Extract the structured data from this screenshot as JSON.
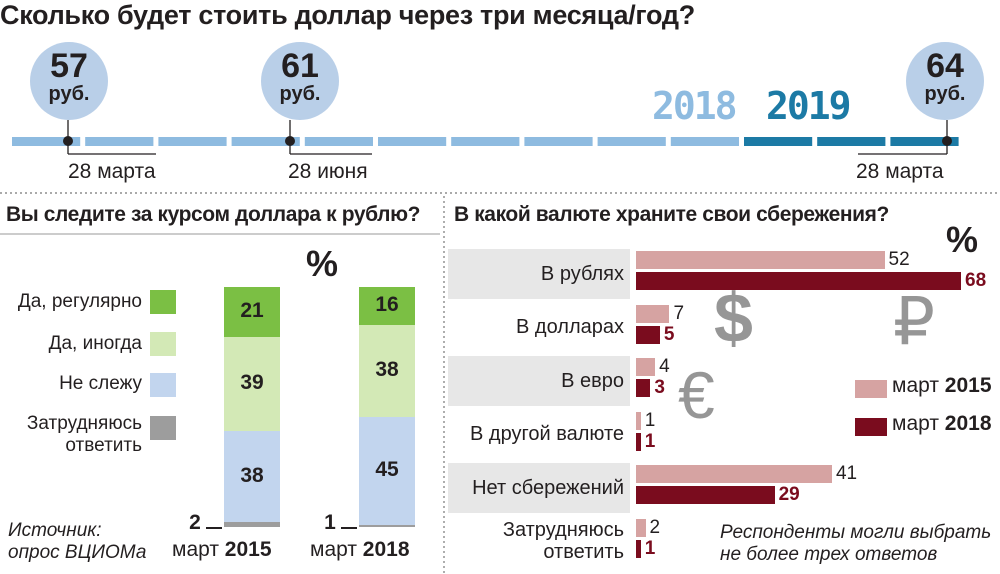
{
  "title": "Сколько будет стоить доллар через три месяца/год?",
  "timeline": {
    "points": [
      {
        "value": "57",
        "unit": "руб.",
        "date": "28 марта"
      },
      {
        "value": "61",
        "unit": "руб.",
        "date": "28 июня"
      },
      {
        "value": "64",
        "unit": "руб.",
        "date": "28 марта"
      }
    ],
    "years": [
      "2018",
      "2019"
    ],
    "colors": {
      "light": "#8ebbe0",
      "dark": "#1c7aa5"
    }
  },
  "chart_data": [
    {
      "type": "bar",
      "title": "Вы следите за курсом доллара к рублю?",
      "unit": "%",
      "categories": [
        "март 2015",
        "март 2018"
      ],
      "category_parts": [
        [
          "март",
          "2015"
        ],
        [
          "март",
          "2018"
        ]
      ],
      "series": [
        {
          "name": "Да, регулярно",
          "values": [
            21,
            16
          ],
          "color": "#7bbf44"
        },
        {
          "name": "Да, иногда",
          "values": [
            39,
            38
          ],
          "color": "#d3e9b6"
        },
        {
          "name": "Не слежу",
          "values": [
            38,
            45
          ],
          "color": "#c2d5ee"
        },
        {
          "name": "Затрудняюсь ответить",
          "values": [
            2,
            1
          ],
          "color": "#9d9d9d"
        }
      ],
      "legend_lines": [
        [
          "Да, регулярно"
        ],
        [
          "Да, иногда"
        ],
        [
          "Не слежу"
        ],
        [
          "Затрудняюсь",
          "ответить"
        ]
      ]
    },
    {
      "type": "bar",
      "orientation": "horizontal",
      "title": "В какой валюте храните свои сбережения?",
      "unit": "%",
      "categories": [
        "В рублях",
        "В долларах",
        "В евро",
        "В другой валюте",
        "Нет сбережений",
        "Затрудняюсь ответить"
      ],
      "category_lines": [
        [
          "В рублях"
        ],
        [
          "В долларах"
        ],
        [
          "В евро"
        ],
        [
          "В другой валюте"
        ],
        [
          "Нет сбережений"
        ],
        [
          "Затрудняюсь",
          "ответить"
        ]
      ],
      "series": [
        {
          "name": "март 2015",
          "values": [
            52,
            7,
            4,
            1,
            41,
            2
          ],
          "color": "#d6a3a2"
        },
        {
          "name": "март 2018",
          "values": [
            68,
            5,
            3,
            1,
            29,
            1
          ],
          "color": "#7a0c1e"
        }
      ],
      "legend": [
        {
          "parts": [
            "март",
            "2015"
          ]
        },
        {
          "parts": [
            "март",
            "2018"
          ]
        }
      ],
      "note": [
        "Респонденты могли выбрать",
        "не более трех ответов"
      ]
    }
  ],
  "decor": {
    "dollar": "$",
    "ruble": "₽",
    "euro": "€"
  },
  "source": [
    "Источник:",
    "опрос ВЦИОМа"
  ]
}
